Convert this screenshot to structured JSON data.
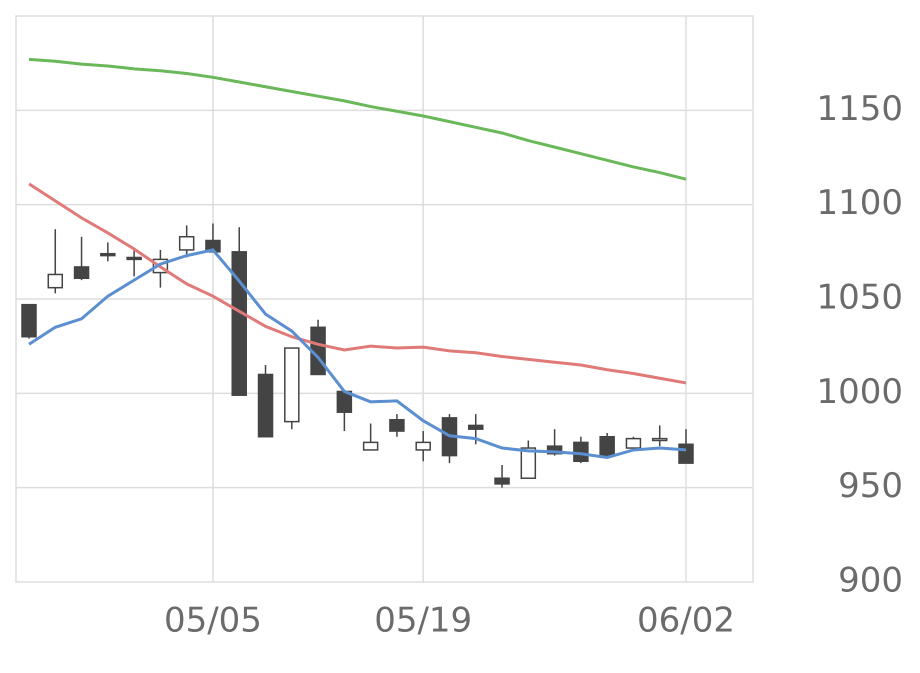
{
  "chart_data": {
    "type": "candlestick",
    "categories": [
      null,
      null,
      null,
      null,
      null,
      null,
      null,
      "05/05",
      null,
      null,
      null,
      null,
      null,
      null,
      null,
      "05/19",
      null,
      null,
      null,
      null,
      null,
      null,
      null,
      null,
      null,
      "06/02"
    ],
    "open": [
      1047,
      1056,
      1067,
      1074,
      1072,
      1064,
      1076,
      1081,
      1075,
      1010,
      985,
      1035,
      1001,
      970,
      986,
      970,
      987,
      983,
      955,
      955,
      972,
      974,
      977,
      971,
      975,
      973
    ],
    "high": [
      1047,
      1087,
      1083,
      1080,
      1077,
      1076,
      1089,
      1090,
      1088,
      1015,
      1024,
      1039,
      1001,
      984,
      989,
      980,
      989,
      989,
      962,
      975,
      981,
      977,
      979,
      977,
      983,
      981
    ],
    "low": [
      1029,
      1053,
      1060,
      1070,
      1062,
      1056,
      1072,
      1075,
      999,
      977,
      981,
      1010,
      980,
      970,
      977,
      964,
      963,
      973,
      950,
      955,
      967,
      963,
      966,
      970,
      972,
      963
    ],
    "close": [
      1030,
      1063,
      1061,
      1073,
      1071,
      1071,
      1083,
      1075,
      999,
      977,
      1024,
      1010,
      990,
      974,
      980,
      974,
      967,
      981,
      952,
      971,
      968,
      964,
      967,
      976,
      976,
      963
    ],
    "up_color": "#ffffff",
    "down_color": "#444444",
    "series": [
      {
        "color": "#6ab85a",
        "values": [
          1177,
          1176,
          1174.5,
          1173.5,
          1172,
          1171,
          1169.5,
          1167.5,
          1165,
          1162.5,
          1160,
          1157.5,
          1155,
          1152,
          1149.5,
          1147,
          1144,
          1141,
          1138,
          1134,
          1130.5,
          1127,
          1123.5,
          1120,
          1117,
          1113.5
        ]
      },
      {
        "color": "#e07a78",
        "values": [
          1111,
          1102,
          1093,
          1085,
          1076.5,
          1067,
          1058,
          1051.5,
          1043.5,
          1035.5,
          1030,
          1026,
          1023,
          1025,
          1024,
          1024.5,
          1022.5,
          1021.5,
          1019.5,
          1018,
          1016.5,
          1015,
          1012.5,
          1010.5,
          1008,
          1005.5
        ]
      },
      {
        "color": "#5b8fd0",
        "values": [
          1026,
          1035,
          1039.5,
          1051.5,
          1060,
          1068.5,
          1073,
          1076,
          1059.5,
          1042,
          1033,
          1019,
          1001,
          995.5,
          996,
          985.5,
          977.5,
          976,
          971,
          969.5,
          969,
          968,
          966,
          970,
          971,
          970
        ]
      }
    ],
    "ylim": [
      900,
      1200
    ],
    "yticks": [
      900,
      950,
      1000,
      1050,
      1100,
      1150
    ],
    "grid": true
  }
}
